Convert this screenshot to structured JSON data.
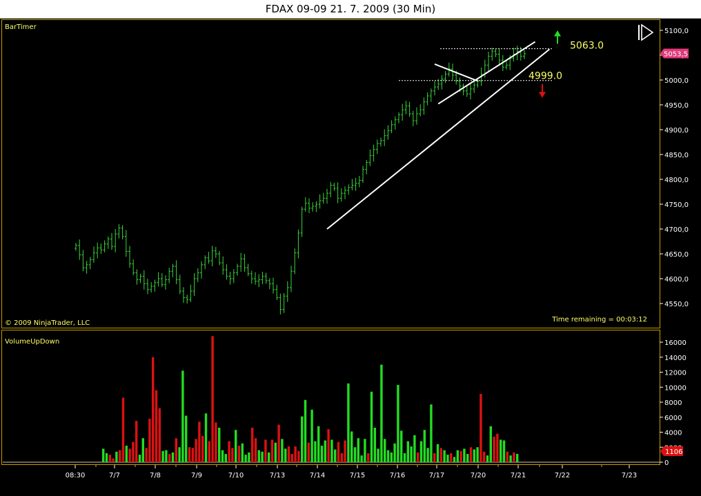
{
  "window": {
    "title": "FDAX 09-09  21. 7. 2009 (30 Min)"
  },
  "colors": {
    "background": "#000000",
    "panel_border": "#c8a000",
    "axis_text": "#ffffff",
    "price_bars": "#39d739",
    "vol_up": "#22dd22",
    "vol_down": "#dd1111",
    "label_yellow": "#ffff66",
    "price_tag": "#e0397a",
    "trendline": "#ffffff",
    "arrow_up": "#22dd22",
    "arrow_down": "#dd1111"
  },
  "price_panel": {
    "indicator_label": "BarTimer",
    "copyright": "© 2009 NinjaTrader, LLC",
    "time_remaining": "Time remaining = 00:03:12",
    "current_price_tag": "5053,5",
    "resistance_label": "5063.0",
    "support_label": "4999.0",
    "icon": "play-pause-icon"
  },
  "volume_panel": {
    "indicator_label": "VolumeUpDown",
    "current_volume_tag": "1106"
  },
  "chart_data": [
    {
      "type": "bar",
      "subtype": "ohlc",
      "title": "",
      "ylim": [
        4500,
        5115
      ],
      "yticks": [
        "5100,0",
        "5050,0",
        "5000,0",
        "4950,0",
        "4900,0",
        "4850,0",
        "4800,0",
        "4750,0",
        "4700,0",
        "4650,0",
        "4600,0",
        "4550,0"
      ],
      "ytick_values": [
        5100,
        5050,
        5000,
        4950,
        4900,
        4850,
        4800,
        4750,
        4700,
        4650,
        4600,
        4550
      ],
      "x_labels": [
        "08:30",
        "7/7",
        "7/8",
        "7/9",
        "7/10",
        "7/13",
        "7/14",
        "7/15",
        "7/16",
        "7/17",
        "7/20",
        "7/21",
        "7/22",
        "7/23"
      ],
      "x_label_dates": [
        "2009-07-06 08:30",
        "2009-07-07",
        "2009-07-08",
        "2009-07-09",
        "2009-07-10",
        "2009-07-13",
        "2009-07-14",
        "2009-07-15",
        "2009-07-16",
        "2009-07-17",
        "2009-07-20",
        "2009-07-21",
        "2009-07-22",
        "2009-07-23"
      ],
      "closes": [
        4667,
        4648,
        4622,
        4628,
        4638,
        4652,
        4662,
        4658,
        4670,
        4680,
        4665,
        4690,
        4702,
        4685,
        4655,
        4630,
        4612,
        4598,
        4605,
        4590,
        4578,
        4585,
        4592,
        4600,
        4588,
        4598,
        4615,
        4625,
        4598,
        4575,
        4562,
        4558,
        4575,
        4600,
        4612,
        4628,
        4642,
        4636,
        4656,
        4650,
        4632,
        4618,
        4605,
        4600,
        4612,
        4625,
        4640,
        4622,
        4610,
        4600,
        4595,
        4598,
        4605,
        4596,
        4590,
        4578,
        4562,
        4538,
        4565,
        4582,
        4615,
        4652,
        4692,
        4740,
        4752,
        4742,
        4746,
        4750,
        4757,
        4762,
        4772,
        4788,
        4782,
        4762,
        4772,
        4778,
        4784,
        4788,
        4792,
        4798,
        4820,
        4834,
        4848,
        4860,
        4872,
        4878,
        4888,
        4898,
        4910,
        4920,
        4930,
        4940,
        4948,
        4932,
        4918,
        4932,
        4940,
        4956,
        4968,
        4978,
        4986,
        4992,
        5002,
        5012,
        5022,
        5010,
        4998,
        4988,
        4978,
        4972,
        4982,
        4990,
        4998,
        5012,
        5030,
        5048,
        5058,
        5052,
        5040,
        5026,
        5030,
        5044,
        5052,
        5058,
        5048,
        5053
      ],
      "reference_lines": [
        {
          "label": "5063.0",
          "value": 5063
        },
        {
          "label": "4999.0",
          "value": 4999
        }
      ],
      "trendlines": [
        {
          "from": [
            70,
            4700
          ],
          "to": [
            132,
            5062
          ]
        },
        {
          "from": [
            101,
            4952
          ],
          "to": [
            128,
            5077
          ]
        },
        {
          "from": [
            100,
            5032
          ],
          "to": [
            112,
            4998
          ]
        }
      ],
      "current_price": 5053.5
    },
    {
      "type": "bar",
      "title": "VolumeUpDown",
      "ylim": [
        0,
        16500
      ],
      "yticks": [
        "16000",
        "14000",
        "12000",
        "10000",
        "8000",
        "6000",
        "4000",
        "2000",
        "0"
      ],
      "ytick_values": [
        16000,
        14000,
        12000,
        10000,
        8000,
        6000,
        4000,
        2000,
        0
      ],
      "series": [
        {
          "values": [
            1800,
            1200,
            1000,
            500,
            1400,
            1600,
            8600,
            2200,
            1800,
            2700,
            5500,
            1000,
            3200,
            1900,
            5800,
            14000,
            9600,
            7200,
            1500,
            1600,
            1100,
            1300,
            3200,
            2000,
            12200,
            6200,
            2000,
            1900,
            3100,
            5400,
            3500,
            6500,
            2800,
            16800,
            5300,
            4600,
            1600,
            1100,
            2800,
            1900,
            4300,
            2200,
            2500,
            1000,
            1300,
            4600,
            3200,
            1600,
            1400,
            3000,
            1300,
            3000,
            2600,
            5000,
            3100,
            1800,
            2100,
            1100,
            2100,
            1500,
            6100,
            8300,
            2600,
            7000,
            2800,
            4800,
            2200,
            2900,
            4400,
            3000,
            1700,
            2700,
            1200,
            2900,
            10500,
            4100,
            2000,
            3200,
            900,
            3100,
            1200,
            9400,
            4600,
            1800,
            13000,
            3100,
            1600,
            1300,
            2500,
            10300,
            4200,
            1200,
            2800,
            2100,
            3600,
            1300,
            2800,
            4300,
            1900,
            7700,
            1200,
            2400,
            1900,
            1600,
            1000,
            1200,
            700,
            1600,
            1500,
            1800,
            1100,
            2000,
            1700,
            2000,
            9100,
            1400,
            900,
            4800,
            3400,
            3800,
            3000,
            2900,
            1400,
            900,
            1300,
            1106
          ],
          "colors": [
            "up",
            "up",
            "down",
            "down",
            "up",
            "down",
            "down",
            "up",
            "down",
            "down",
            "down",
            "up",
            "up",
            "down",
            "down",
            "down",
            "down",
            "down",
            "up",
            "up",
            "down",
            "up",
            "down",
            "up",
            "up",
            "up",
            "down",
            "down",
            "down",
            "down",
            "down",
            "up",
            "down",
            "down",
            "down",
            "up",
            "up",
            "up",
            "down",
            "down",
            "up",
            "down",
            "up",
            "up",
            "up",
            "down",
            "down",
            "up",
            "up",
            "down",
            "up",
            "down",
            "up",
            "down",
            "up",
            "up",
            "down",
            "down",
            "down",
            "down",
            "up",
            "up",
            "down",
            "up",
            "up",
            "up",
            "up",
            "up",
            "down",
            "up",
            "up",
            "down",
            "down",
            "down",
            "up",
            "up",
            "up",
            "up",
            "up",
            "up",
            "down",
            "up",
            "up",
            "up",
            "up",
            "up",
            "up",
            "up",
            "up",
            "up",
            "up",
            "up",
            "up",
            "up",
            "up",
            "down",
            "up",
            "up",
            "up",
            "up",
            "down",
            "up",
            "down",
            "up",
            "up",
            "down",
            "up",
            "up",
            "down",
            "up",
            "up",
            "down",
            "up",
            "up",
            "down",
            "down",
            "up",
            "up",
            "down",
            "down",
            "up",
            "up",
            "down",
            "up",
            "down",
            "up"
          ]
        }
      ]
    }
  ]
}
